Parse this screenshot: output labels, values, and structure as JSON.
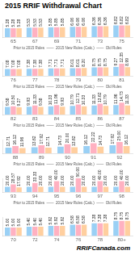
{
  "title": "2015 RRIF Withdrawal Chart",
  "annotation": "RRIFCanada.com",
  "chart_data": [
    {
      "type": "bar",
      "annotation": "Prior to 2015 Rules  ——  2015 New Rules (Calc.)  ——  Old Rules",
      "categories": [
        "65",
        "67",
        "69",
        "71",
        "73",
        "75"
      ],
      "series": [
        {
          "values": [
            5.28,
            5.53,
            5.85,
            6.06,
            6.36,
            6.82
          ],
          "value_labels": [
            "5.28",
            "5.53",
            "5.85",
            "6.06",
            "6.36",
            "6.82"
          ]
        },
        {
          "values": [
            5.28,
            5.53,
            5.85,
            6.06,
            6.36,
            6.82
          ],
          "value_labels": [
            "5.28",
            "5.53",
            "5.85",
            "6.06",
            "6.36",
            "6.82"
          ]
        },
        {
          "values": [
            5.28,
            5.53,
            5.85,
            6.06,
            6.36,
            6.82
          ],
          "value_labels": [
            "5.28",
            "5.53",
            "5.85",
            "6.06",
            "6.36",
            "6.82"
          ]
        }
      ],
      "ylim": [
        0,
        8.0
      ],
      "data_labels": true,
      "tick_labels": "x",
      "grid": false
    },
    {
      "type": "bar",
      "annotation": "Prior to 2015 Rules  ——  2015 New Rules (Calc.)  ——  Old Rules",
      "categories": [
        "76",
        "77",
        "78",
        "79",
        "80",
        "81"
      ],
      "series": [
        {
          "values": [
            7.08,
            7.38,
            7.71,
            8.01,
            8.75,
            9.27
          ],
          "value_labels": [
            "7.08",
            "7.38",
            "7.71",
            "8.01",
            "8.75",
            "9.27"
          ]
        },
        {
          "values": [
            7.08,
            7.38,
            7.71,
            8.01,
            8.75,
            12.35
          ],
          "value_labels": [
            "7.08",
            "7.38",
            "7.71",
            "8.01",
            "8.75",
            "12.35"
          ]
        },
        {
          "values": [
            7.08,
            7.38,
            7.71,
            8.2,
            8.75,
            8.99
          ],
          "value_labels": [
            "7.08",
            "7.38",
            "7.71",
            "8.20",
            "8.75",
            "8.99"
          ]
        }
      ],
      "ylim": [
        0,
        14.0
      ],
      "data_labels": true,
      "tick_labels": "x",
      "grid": false
    },
    {
      "type": "bar",
      "annotation": "Prior to 2015 Rules  ——  2015 New Rules (Calc.)  ——  Old Rules",
      "categories": [
        "82",
        "83",
        "84",
        "85",
        "86",
        "87"
      ],
      "series": [
        {
          "values": [
            9.58,
            9.93,
            10.33,
            10.79,
            11.33,
            11.96
          ],
          "value_labels": [
            "9.58",
            "9.93",
            "10.33",
            "10.79",
            "11.33",
            "11.96"
          ]
        },
        {
          "values": [
            10.5,
            11.33,
            11.96,
            12.71,
            13.62,
            14.73
          ],
          "value_labels": [
            "10.50",
            "11.33",
            "11.96",
            "12.71",
            "13.62",
            "14.73"
          ]
        },
        {
          "values": [
            9.27,
            9.58,
            9.93,
            10.33,
            10.79,
            11.33
          ],
          "value_labels": [
            "9.27",
            "9.58",
            "9.93",
            "10.33",
            "10.79",
            "11.33"
          ]
        }
      ],
      "ylim": [
        0,
        17.0
      ],
      "data_labels": true,
      "tick_labels": "x",
      "grid": false
    },
    {
      "type": "bar",
      "annotation": "Prior to 2015 Rules  ——  2015 New Rules (Calc.)  ——  Old Rules",
      "categories": [
        "88",
        "89",
        "90",
        "91",
        "92"
      ],
      "series": [
        {
          "values": [
            12.71,
            13.62,
            14.73,
            16.12,
            17.92
          ],
          "value_labels": [
            "12.71",
            "13.62",
            "14.73",
            "16.12",
            "17.92"
          ]
        },
        {
          "values": [
            16.12,
            17.92,
            20.0,
            22.22,
            25.0
          ],
          "value_labels": [
            "16.12",
            "17.92",
            "20.00",
            "22.22",
            "25.00"
          ]
        },
        {
          "values": [
            11.96,
            12.71,
            13.62,
            14.73,
            16.12
          ],
          "value_labels": [
            "11.96",
            "12.71",
            "13.62",
            "14.73",
            "16.12"
          ]
        }
      ],
      "ylim": [
        0,
        30.0
      ],
      "data_labels": true,
      "tick_labels": "x",
      "grid": false
    },
    {
      "type": "bar",
      "annotation": "Prior to 2015 Rules  ——  2015 New Rules (Calc.)  ——  Old Rules",
      "categories": [
        "93",
        "94",
        "95",
        "96",
        "97",
        "98"
      ],
      "series": [
        {
          "values": [
            20.0,
            20.0,
            20.0,
            20.0,
            20.0,
            20.0
          ],
          "value_labels": [
            "20.00",
            "20.00",
            "20.00",
            "20.00",
            "20.00",
            "20.00"
          ]
        },
        {
          "values": [
            28.57,
            33.33,
            40.0,
            50.0,
            40.0,
            40.0
          ],
          "value_labels": [
            "28.57",
            "33.33",
            "40.00",
            "50.00",
            "40.00",
            "40.00"
          ]
        },
        {
          "values": [
            17.92,
            20.0,
            20.0,
            20.0,
            20.0,
            20.0
          ],
          "value_labels": [
            "17.92",
            "20.00",
            "20.00",
            "20.00",
            "20.00",
            "20.00"
          ]
        }
      ],
      "ylim": [
        0,
        50.0
      ],
      "data_labels": true,
      "tick_labels": "x",
      "grid": false
    },
    {
      "type": "bar",
      "categories": [
        "70",
        "72",
        "74",
        "76",
        "78",
        "80+"
      ],
      "series": [
        {
          "values": [
            5.0,
            5.4,
            5.92,
            6.58,
            7.38,
            8.75
          ],
          "value_labels": [
            "5.00",
            "5.40",
            "5.92",
            "6.58",
            "7.38",
            "8.75"
          ]
        },
        {
          "values": [
            5.0,
            5.4,
            5.92,
            6.58,
            7.38,
            8.75
          ],
          "value_labels": [
            "5.00",
            "5.40",
            "5.92",
            "6.58",
            "7.38",
            "8.75"
          ]
        },
        {
          "values": [
            5.0,
            5.4,
            5.92,
            6.58,
            7.38,
            8.75
          ],
          "value_labels": [
            "5.00",
            "5.40",
            "5.92",
            "6.58",
            "7.38",
            "8.75"
          ]
        }
      ],
      "ylim": [
        0,
        11.0
      ],
      "data_labels": true,
      "tick_labels": "x",
      "grid": false
    }
  ]
}
